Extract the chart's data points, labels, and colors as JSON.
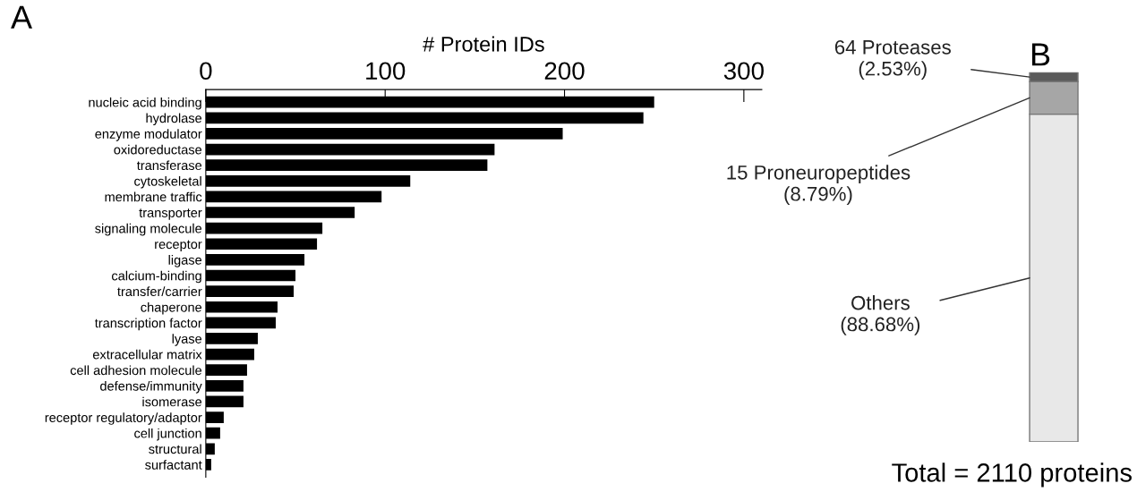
{
  "chart_data": [
    {
      "type": "bar",
      "title": "A",
      "orientation": "horizontal",
      "xlabel": "# Protein IDs",
      "categories": [
        "nucleic acid binding",
        "hydrolase",
        "enzyme modulator",
        "oxidoreductase",
        "transferase",
        "cytoskeletal",
        "membrane traffic",
        "transporter",
        "signaling molecule",
        "receptor",
        "ligase",
        "calcium-binding",
        "transfer/carrier",
        "chaperone",
        "transcription factor",
        "lyase",
        "extracellular matrix",
        "cell adhesion molecule",
        "defense/immunity",
        "isomerase",
        "receptor regulatory/adaptor",
        "cell junction",
        "structural",
        "surfactant"
      ],
      "values": [
        250,
        244,
        199,
        161,
        157,
        114,
        98,
        83,
        65,
        62,
        55,
        50,
        49,
        40,
        39,
        29,
        27,
        23,
        21,
        21,
        10,
        8,
        5,
        3
      ],
      "color": "#000000",
      "xlim": [
        0,
        310
      ],
      "xticks": [
        0,
        100,
        200,
        300
      ],
      "grid": false,
      "legend": false
    },
    {
      "type": "bar",
      "title": "B",
      "stacked": true,
      "categories": [
        null
      ],
      "series": [
        {
          "color": "#e8e8e8",
          "values": [
            88.68
          ],
          "value_labels": [
            "Others\n(88.68%)"
          ]
        },
        {
          "color": "#a6a6a6",
          "values": [
            8.79
          ],
          "value_labels": [
            "15 Proneuropeptides\n(8.79%)"
          ]
        },
        {
          "color": "#5a5a5a",
          "values": [
            2.53
          ],
          "value_labels": [
            "64 Proteases\n(2.53%)"
          ]
        }
      ],
      "annotations": [
        "Total = 2110 proteins"
      ],
      "grid": false,
      "legend": false
    }
  ]
}
